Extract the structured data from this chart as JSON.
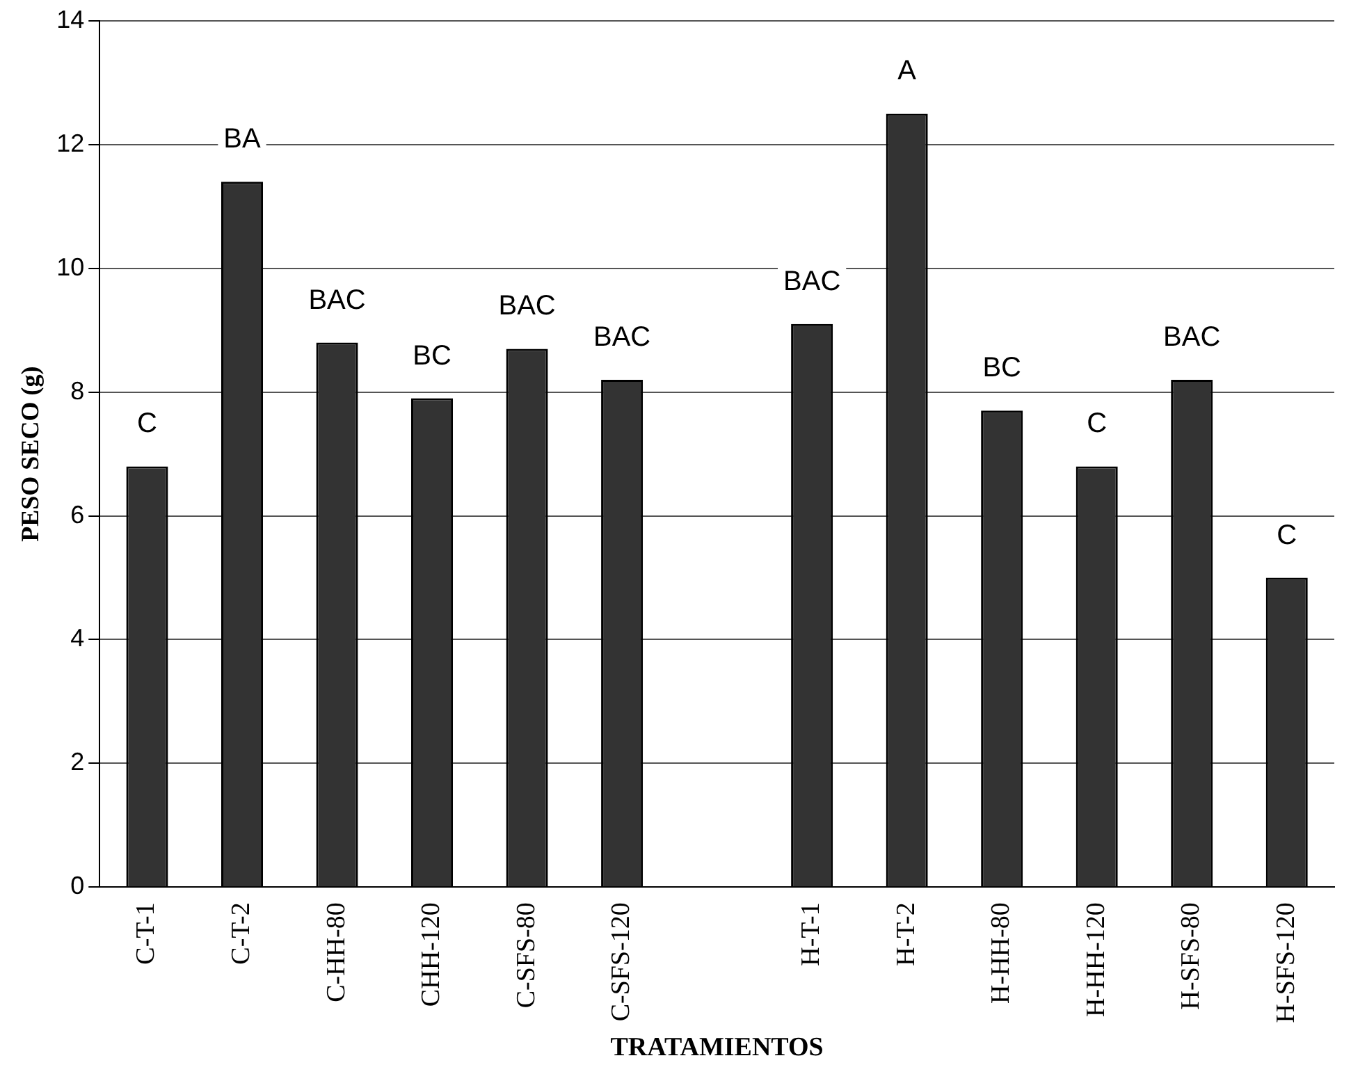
{
  "chart_data": {
    "type": "bar",
    "xlabel": "TRATAMIENTOS",
    "ylabel": "PESO SECO (g)",
    "categories": [
      "C-T-1",
      "C-T-2",
      "C-HH-80",
      "CHH-120",
      "C-SFS-80",
      "C-SFS-120",
      null,
      "H-T-1",
      "H-T-2",
      "H-HH-80",
      "H-HH-120",
      "H-SFS-80",
      "H-SFS-120"
    ],
    "values": [
      6.8,
      11.4,
      8.8,
      7.9,
      8.7,
      8.2,
      null,
      9.1,
      12.5,
      7.7,
      6.8,
      8.2,
      5.0
    ],
    "value_labels": [
      "C",
      "BA",
      "BAC",
      "BC",
      "BAC",
      "BAC",
      null,
      "BAC",
      "A",
      "BC",
      "C",
      "BAC",
      "C"
    ],
    "color": "#333333",
    "ylim": [
      0,
      14
    ],
    "yticks": [
      0,
      2,
      4,
      6,
      8,
      10,
      12,
      14
    ],
    "grid": "y",
    "legend": false
  }
}
